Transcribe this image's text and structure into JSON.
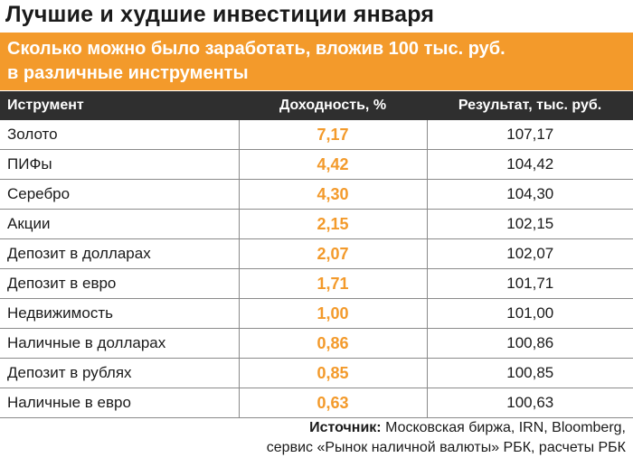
{
  "title": "Лучшие и худшие инвестиции января",
  "subtitle": {
    "line1": "Сколько можно было заработать, вложив 100 тыс. руб.",
    "line2": "в различные инструменты"
  },
  "colors": {
    "accent": "#f39a2b",
    "header_bg": "#2f2f2f",
    "text": "#1a1a1a"
  },
  "table": {
    "headers": [
      "Иструмент",
      "Доходность, %",
      "Результат, тыс. руб."
    ],
    "rows": [
      {
        "name": "Золото",
        "yield": "7,17",
        "result": "107,17"
      },
      {
        "name": "ПИФы",
        "yield": "4,42",
        "result": "104,42"
      },
      {
        "name": "Серебро",
        "yield": "4,30",
        "result": "104,30"
      },
      {
        "name": "Акции",
        "yield": "2,15",
        "result": "102,15"
      },
      {
        "name": "Депозит в долларах",
        "yield": "2,07",
        "result": "102,07"
      },
      {
        "name": "Депозит в евро",
        "yield": "1,71",
        "result": "101,71"
      },
      {
        "name": "Недвижимость",
        "yield": "1,00",
        "result": "101,00"
      },
      {
        "name": "Наличные в долларах",
        "yield": "0,86",
        "result": "100,86"
      },
      {
        "name": "Депозит в рублях",
        "yield": "0,85",
        "result": "100,85"
      },
      {
        "name": "Наличные в евро",
        "yield": "0,63",
        "result": "100,63"
      }
    ]
  },
  "source": {
    "label": "Источник:",
    "line1": " Московская биржа, IRN, Bloomberg,",
    "line2": "сервис «Рынок наличной валюты» РБК, расчеты РБК"
  }
}
